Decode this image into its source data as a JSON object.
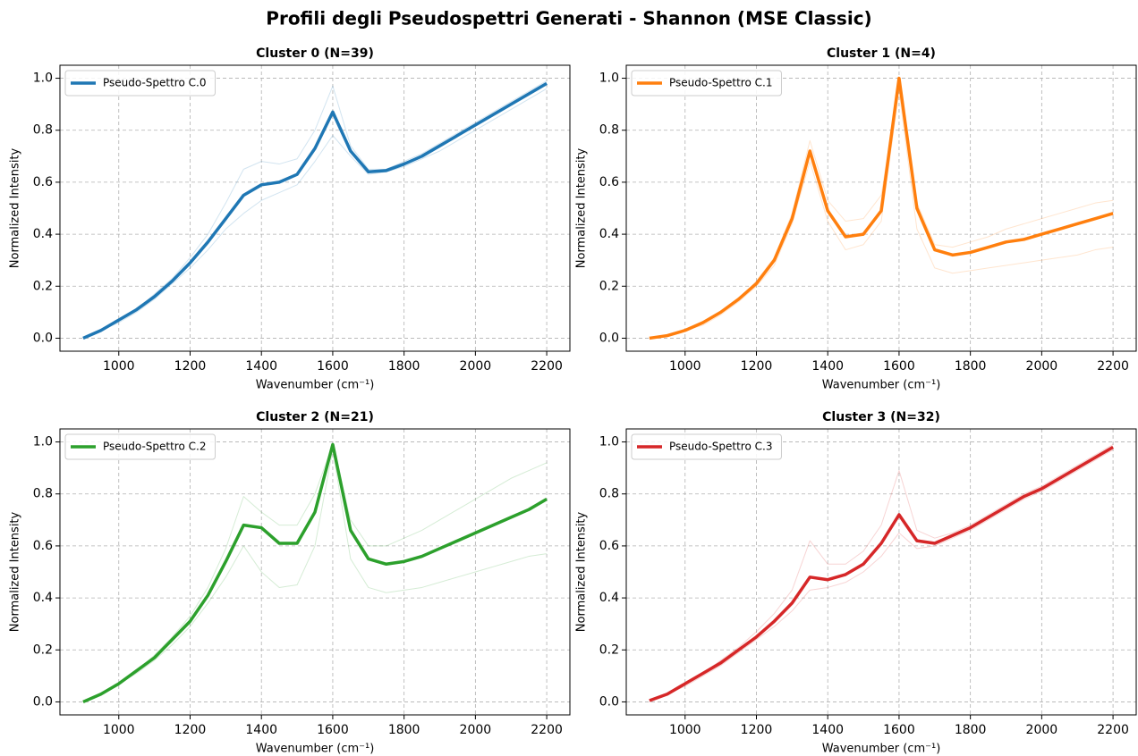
{
  "title": "Profili degli Pseudospettri Generati - Shannon (MSE Classic)",
  "chart_data": [
    {
      "type": "line",
      "title": "Cluster 0 (N=39)",
      "xlabel": "Wavenumber (cm⁻¹)",
      "ylabel": "Normalized Intensity",
      "x": [
        900,
        950,
        1000,
        1050,
        1100,
        1150,
        1200,
        1250,
        1300,
        1350,
        1400,
        1450,
        1500,
        1550,
        1600,
        1650,
        1700,
        1750,
        1800,
        1850,
        1900,
        1950,
        2000,
        2050,
        2100,
        2150,
        2200
      ],
      "series": [
        {
          "color": "#1f77b4",
          "opacity": 0.2,
          "linewidth": 1,
          "values": [
            0,
            0.03,
            0.07,
            0.11,
            0.17,
            0.23,
            0.31,
            0.4,
            0.52,
            0.65,
            0.68,
            0.67,
            0.69,
            0.8,
            0.97,
            0.74,
            0.65,
            0.65,
            0.68,
            0.71,
            0.75,
            0.79,
            0.83,
            0.87,
            0.91,
            0.95,
            0.99
          ]
        },
        {
          "color": "#1f77b4",
          "opacity": 0.2,
          "linewidth": 1,
          "values": [
            0,
            0.03,
            0.06,
            0.1,
            0.15,
            0.21,
            0.27,
            0.34,
            0.42,
            0.48,
            0.53,
            0.56,
            0.59,
            0.68,
            0.78,
            0.7,
            0.63,
            0.64,
            0.66,
            0.69,
            0.72,
            0.76,
            0.8,
            0.84,
            0.88,
            0.92,
            0.96
          ]
        },
        {
          "name": "Pseudo-Spettro C.0",
          "color": "#1f77b4",
          "opacity": 1,
          "linewidth": 3.5,
          "values": [
            0,
            0.03,
            0.07,
            0.11,
            0.16,
            0.22,
            0.29,
            0.37,
            0.46,
            0.55,
            0.59,
            0.6,
            0.63,
            0.73,
            0.87,
            0.72,
            0.64,
            0.645,
            0.67,
            0.7,
            0.74,
            0.78,
            0.82,
            0.86,
            0.9,
            0.94,
            0.98
          ]
        }
      ],
      "xlim": [
        835,
        2265
      ],
      "ylim": [
        -0.05,
        1.05
      ],
      "xticks": [
        1000,
        1200,
        1400,
        1600,
        1800,
        2000,
        2200
      ],
      "yticks": [
        {
          "value": 0,
          "label": "0.0"
        },
        {
          "value": 0.2,
          "label": "0.2"
        },
        {
          "value": 0.4,
          "label": "0.4"
        },
        {
          "value": 0.6,
          "label": "0.6"
        },
        {
          "value": 0.8,
          "label": "0.8"
        },
        {
          "value": 1,
          "label": "1.0"
        }
      ],
      "grid": true,
      "legend": "upper-left"
    },
    {
      "type": "line",
      "title": "Cluster 1 (N=4)",
      "xlabel": "Wavenumber (cm⁻¹)",
      "ylabel": "Normalized Intensity",
      "x": [
        900,
        950,
        1000,
        1050,
        1100,
        1150,
        1200,
        1250,
        1300,
        1350,
        1400,
        1450,
        1500,
        1550,
        1600,
        1650,
        1700,
        1750,
        1800,
        1850,
        1900,
        1950,
        2000,
        2050,
        2100,
        2150,
        2200
      ],
      "series": [
        {
          "color": "#ff7f0e",
          "opacity": 0.2,
          "linewidth": 1,
          "values": [
            0,
            0.01,
            0.03,
            0.06,
            0.1,
            0.15,
            0.22,
            0.31,
            0.48,
            0.76,
            0.53,
            0.45,
            0.46,
            0.55,
            0.98,
            0.52,
            0.36,
            0.35,
            0.37,
            0.39,
            0.42,
            0.44,
            0.46,
            0.48,
            0.5,
            0.52,
            0.53
          ]
        },
        {
          "color": "#ff7f0e",
          "opacity": 0.2,
          "linewidth": 1,
          "values": [
            0,
            0.01,
            0.03,
            0.05,
            0.09,
            0.14,
            0.2,
            0.28,
            0.44,
            0.68,
            0.45,
            0.34,
            0.36,
            0.45,
            0.95,
            0.42,
            0.27,
            0.25,
            0.26,
            0.27,
            0.28,
            0.29,
            0.3,
            0.31,
            0.32,
            0.34,
            0.35
          ]
        },
        {
          "name": "Pseudo-Spettro C.1",
          "color": "#ff7f0e",
          "opacity": 1,
          "linewidth": 3.5,
          "values": [
            0,
            0.01,
            0.03,
            0.06,
            0.1,
            0.15,
            0.21,
            0.3,
            0.46,
            0.72,
            0.49,
            0.39,
            0.4,
            0.49,
            1.0,
            0.5,
            0.34,
            0.32,
            0.33,
            0.35,
            0.37,
            0.38,
            0.4,
            0.42,
            0.44,
            0.46,
            0.48
          ]
        }
      ],
      "xlim": [
        835,
        2265
      ],
      "ylim": [
        -0.05,
        1.05
      ],
      "xticks": [
        1000,
        1200,
        1400,
        1600,
        1800,
        2000,
        2200
      ],
      "yticks": [
        {
          "value": 0,
          "label": "0.0"
        },
        {
          "value": 0.2,
          "label": "0.2"
        },
        {
          "value": 0.4,
          "label": "0.4"
        },
        {
          "value": 0.6,
          "label": "0.6"
        },
        {
          "value": 0.8,
          "label": "0.8"
        },
        {
          "value": 1,
          "label": "1.0"
        }
      ],
      "grid": true,
      "legend": "upper-left"
    },
    {
      "type": "line",
      "title": "Cluster 2 (N=21)",
      "xlabel": "Wavenumber (cm⁻¹)",
      "ylabel": "Normalized Intensity",
      "x": [
        900,
        950,
        1000,
        1050,
        1100,
        1150,
        1200,
        1250,
        1300,
        1350,
        1400,
        1450,
        1500,
        1550,
        1600,
        1650,
        1700,
        1750,
        1800,
        1850,
        1900,
        1950,
        2000,
        2050,
        2100,
        2150,
        2200
      ],
      "series": [
        {
          "color": "#2ca02c",
          "opacity": 0.2,
          "linewidth": 1,
          "values": [
            0,
            0.03,
            0.07,
            0.12,
            0.18,
            0.25,
            0.33,
            0.44,
            0.59,
            0.79,
            0.73,
            0.68,
            0.68,
            0.8,
            0.99,
            0.7,
            0.6,
            0.6,
            0.63,
            0.66,
            0.7,
            0.74,
            0.78,
            0.82,
            0.86,
            0.89,
            0.92
          ]
        },
        {
          "color": "#2ca02c",
          "opacity": 0.2,
          "linewidth": 1,
          "values": [
            0,
            0.03,
            0.07,
            0.11,
            0.16,
            0.22,
            0.29,
            0.38,
            0.48,
            0.6,
            0.5,
            0.44,
            0.45,
            0.6,
            0.97,
            0.55,
            0.44,
            0.42,
            0.43,
            0.44,
            0.46,
            0.48,
            0.5,
            0.52,
            0.54,
            0.56,
            0.57
          ]
        },
        {
          "name": "Pseudo-Spettro C.2",
          "color": "#2ca02c",
          "opacity": 1,
          "linewidth": 3.5,
          "values": [
            0,
            0.03,
            0.07,
            0.12,
            0.17,
            0.24,
            0.31,
            0.41,
            0.54,
            0.68,
            0.67,
            0.61,
            0.61,
            0.73,
            0.99,
            0.66,
            0.55,
            0.53,
            0.54,
            0.56,
            0.59,
            0.62,
            0.65,
            0.68,
            0.71,
            0.74,
            0.78
          ]
        }
      ],
      "xlim": [
        835,
        2265
      ],
      "ylim": [
        -0.05,
        1.05
      ],
      "xticks": [
        1000,
        1200,
        1400,
        1600,
        1800,
        2000,
        2200
      ],
      "yticks": [
        {
          "value": 0,
          "label": "0.0"
        },
        {
          "value": 0.2,
          "label": "0.2"
        },
        {
          "value": 0.4,
          "label": "0.4"
        },
        {
          "value": 0.6,
          "label": "0.6"
        },
        {
          "value": 0.8,
          "label": "0.8"
        },
        {
          "value": 1,
          "label": "1.0"
        }
      ],
      "grid": true,
      "legend": "upper-left"
    },
    {
      "type": "line",
      "title": "Cluster 3 (N=32)",
      "xlabel": "Wavenumber (cm⁻¹)",
      "ylabel": "Normalized Intensity",
      "x": [
        900,
        950,
        1000,
        1050,
        1100,
        1150,
        1200,
        1250,
        1300,
        1350,
        1400,
        1450,
        1500,
        1550,
        1600,
        1650,
        1700,
        1750,
        1800,
        1850,
        1900,
        1950,
        2000,
        2050,
        2100,
        2150,
        2200
      ],
      "series": [
        {
          "color": "#d62728",
          "opacity": 0.2,
          "linewidth": 1,
          "values": [
            0.005,
            0.03,
            0.07,
            0.11,
            0.16,
            0.21,
            0.27,
            0.34,
            0.43,
            0.62,
            0.53,
            0.53,
            0.58,
            0.68,
            0.89,
            0.66,
            0.63,
            0.65,
            0.68,
            0.72,
            0.76,
            0.8,
            0.83,
            0.87,
            0.91,
            0.95,
            0.99
          ]
        },
        {
          "color": "#d62728",
          "opacity": 0.2,
          "linewidth": 1,
          "values": [
            0.005,
            0.03,
            0.06,
            0.1,
            0.14,
            0.19,
            0.24,
            0.29,
            0.35,
            0.43,
            0.44,
            0.46,
            0.5,
            0.56,
            0.65,
            0.59,
            0.6,
            0.63,
            0.66,
            0.7,
            0.74,
            0.78,
            0.81,
            0.85,
            0.89,
            0.93,
            0.97
          ]
        },
        {
          "name": "Pseudo-Spettro C.3",
          "color": "#d62728",
          "opacity": 1,
          "linewidth": 3.5,
          "values": [
            0.005,
            0.03,
            0.07,
            0.11,
            0.15,
            0.2,
            0.25,
            0.31,
            0.38,
            0.48,
            0.47,
            0.49,
            0.53,
            0.61,
            0.72,
            0.62,
            0.61,
            0.64,
            0.67,
            0.71,
            0.75,
            0.79,
            0.82,
            0.86,
            0.9,
            0.94,
            0.98
          ]
        }
      ],
      "xlim": [
        835,
        2265
      ],
      "ylim": [
        -0.05,
        1.05
      ],
      "xticks": [
        1000,
        1200,
        1400,
        1600,
        1800,
        2000,
        2200
      ],
      "yticks": [
        {
          "value": 0,
          "label": "0.0"
        },
        {
          "value": 0.2,
          "label": "0.2"
        },
        {
          "value": 0.4,
          "label": "0.4"
        },
        {
          "value": 0.6,
          "label": "0.6"
        },
        {
          "value": 0.8,
          "label": "0.8"
        },
        {
          "value": 1,
          "label": "1.0"
        }
      ],
      "grid": true,
      "legend": "upper-left"
    }
  ]
}
